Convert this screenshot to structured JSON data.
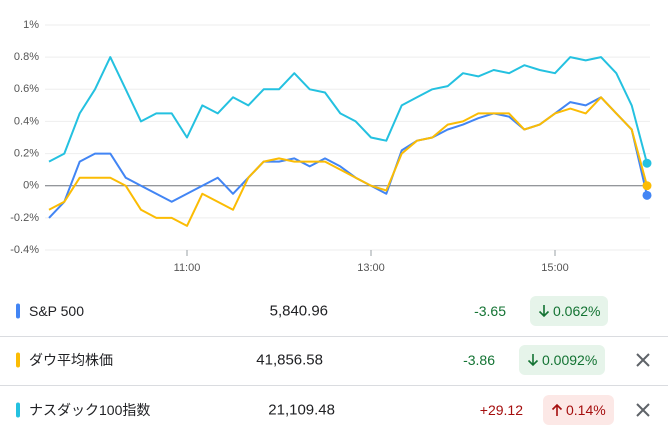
{
  "chart_data": {
    "type": "line",
    "x": [
      570,
      580,
      590,
      600,
      610,
      620,
      630,
      640,
      650,
      660,
      670,
      680,
      690,
      700,
      710,
      720,
      730,
      740,
      750,
      760,
      770,
      780,
      790,
      800,
      810,
      820,
      830,
      840,
      850,
      860,
      870,
      880,
      890,
      900,
      910,
      920,
      930,
      940,
      950,
      960
    ],
    "xlim": [
      570,
      960
    ],
    "xticks": [
      {
        "value": 660,
        "label": "11:00"
      },
      {
        "value": 780,
        "label": "13:00"
      },
      {
        "value": 900,
        "label": "15:00"
      }
    ],
    "ylim": [
      -0.4,
      1
    ],
    "yticks": [
      {
        "value": 1,
        "label": "1%"
      },
      {
        "value": 0.8,
        "label": "0.8%"
      },
      {
        "value": 0.6,
        "label": "0.6%"
      },
      {
        "value": 0.4,
        "label": "0.4%"
      },
      {
        "value": 0.2,
        "label": "0.2%"
      },
      {
        "value": 0,
        "label": "0%"
      },
      {
        "value": -0.2,
        "label": "-0.2%"
      },
      {
        "value": -0.4,
        "label": "-0.4%"
      }
    ],
    "grid": true,
    "series": [
      {
        "name": "S&P 500",
        "color": "#4285f4",
        "values": [
          -0.2,
          -0.1,
          0.15,
          0.2,
          0.2,
          0.05,
          0.0,
          -0.05,
          -0.1,
          -0.05,
          0.0,
          0.05,
          -0.05,
          0.05,
          0.15,
          0.15,
          0.17,
          0.12,
          0.17,
          0.12,
          0.05,
          0.0,
          -0.05,
          0.22,
          0.28,
          0.3,
          0.35,
          0.38,
          0.42,
          0.45,
          0.43,
          0.35,
          0.38,
          0.45,
          0.52,
          0.5,
          0.55,
          0.45,
          0.35,
          -0.06
        ]
      },
      {
        "name": "ダウ平均株価",
        "color": "#fbbc04",
        "values": [
          -0.15,
          -0.1,
          0.05,
          0.05,
          0.05,
          0.0,
          -0.15,
          -0.2,
          -0.2,
          -0.25,
          -0.05,
          -0.1,
          -0.15,
          0.05,
          0.15,
          0.17,
          0.15,
          0.15,
          0.15,
          0.1,
          0.05,
          0.0,
          -0.03,
          0.2,
          0.28,
          0.3,
          0.38,
          0.4,
          0.45,
          0.45,
          0.45,
          0.35,
          0.38,
          0.45,
          0.48,
          0.45,
          0.55,
          0.45,
          0.35,
          0.0
        ]
      },
      {
        "name": "ナスダック100指数",
        "color": "#24c1e0",
        "values": [
          0.15,
          0.2,
          0.45,
          0.6,
          0.8,
          0.6,
          0.4,
          0.45,
          0.45,
          0.3,
          0.5,
          0.45,
          0.55,
          0.5,
          0.6,
          0.6,
          0.7,
          0.6,
          0.58,
          0.45,
          0.4,
          0.3,
          0.28,
          0.5,
          0.55,
          0.6,
          0.62,
          0.7,
          0.68,
          0.72,
          0.7,
          0.75,
          0.72,
          0.7,
          0.8,
          0.78,
          0.8,
          0.7,
          0.5,
          0.14
        ]
      }
    ]
  },
  "table": {
    "rows": [
      {
        "price": "5,840.96",
        "change": "-3.65",
        "percent": "0.062%"
      },
      {
        "price": "41,856.58",
        "change": "-3.86",
        "percent": "0.0092%"
      },
      {
        "price": "21,109.48",
        "change": "+29.12",
        "percent": "0.14%"
      }
    ]
  }
}
